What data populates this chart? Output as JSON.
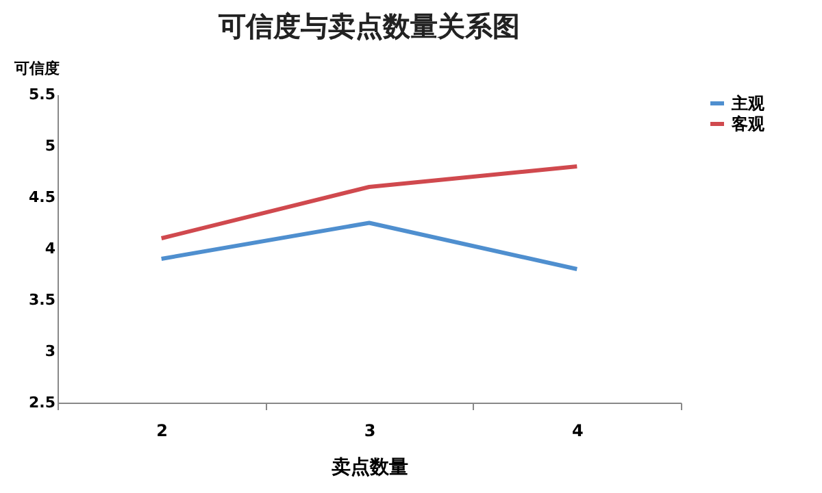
{
  "chart_data": {
    "type": "line",
    "title": "可信度与卖点数量关系图",
    "xlabel": "卖点数量",
    "ylabel": "可信度",
    "categories": [
      "2",
      "3",
      "4"
    ],
    "series": [
      {
        "name": "主观",
        "color": "#4f8fcf",
        "values": [
          3.9,
          4.25,
          3.8
        ]
      },
      {
        "name": "客观",
        "color": "#d0494e",
        "values": [
          4.1,
          4.6,
          4.8
        ]
      }
    ],
    "ylim": [
      2.5,
      5.5
    ],
    "yticks": [
      2.5,
      3,
      3.5,
      4,
      4.5,
      5,
      5.5
    ],
    "grid": false,
    "legend": "right",
    "marker": "none",
    "line_style": "solid"
  }
}
